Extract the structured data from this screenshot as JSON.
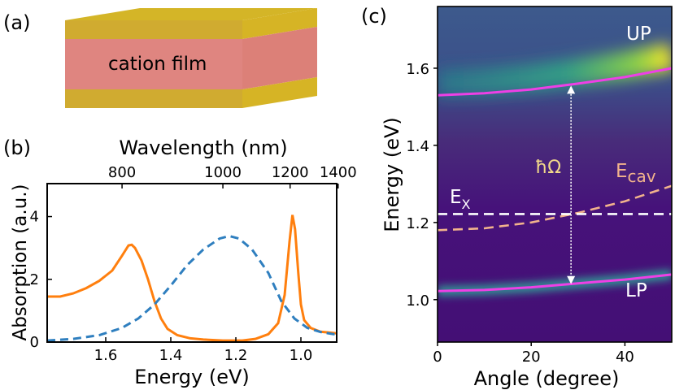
{
  "panels": {
    "a": {
      "label": "(a)",
      "film_label": "cation film",
      "colors": {
        "mirror": "#d4b527",
        "mirror_side": "#cfa832",
        "film": "#df8580",
        "film_side": "#d87d73"
      }
    },
    "b": {
      "label": "(b)"
    },
    "c": {
      "label": "(c)"
    }
  },
  "chart_data": [
    {
      "type": "line",
      "panel": "b",
      "xlabel": "Energy (eV)",
      "ylabel": "Absorption (a.u.)",
      "x_reversed": true,
      "xlim": [
        1.78,
        0.89
      ],
      "ylim": [
        0,
        5.05
      ],
      "xticks": [
        1.6,
        1.4,
        1.2,
        1.0
      ],
      "xtick_labels": [
        "1.6",
        "1.4",
        "1.2",
        "1.0"
      ],
      "yticks": [
        0,
        2,
        4
      ],
      "ytick_labels": [
        "0",
        "2",
        "4"
      ],
      "top_axis": {
        "label": "Wavelength (nm)",
        "ticks_nm": [
          800,
          1000,
          1200,
          1400
        ],
        "tick_labels": [
          "800",
          "1000",
          "1200",
          "1400"
        ],
        "conversion": "E = 1239.84 / wavelength"
      },
      "series": [
        {
          "style": "solid",
          "color": "#ff7f0e",
          "points": [
            [
              1.78,
              1.45
            ],
            [
              1.74,
              1.45
            ],
            [
              1.7,
              1.55
            ],
            [
              1.66,
              1.72
            ],
            [
              1.62,
              1.95
            ],
            [
              1.58,
              2.28
            ],
            [
              1.55,
              2.75
            ],
            [
              1.53,
              3.08
            ],
            [
              1.52,
              3.1
            ],
            [
              1.51,
              3.0
            ],
            [
              1.49,
              2.6
            ],
            [
              1.47,
              2.0
            ],
            [
              1.45,
              1.3
            ],
            [
              1.43,
              0.75
            ],
            [
              1.41,
              0.42
            ],
            [
              1.38,
              0.22
            ],
            [
              1.34,
              0.12
            ],
            [
              1.3,
              0.08
            ],
            [
              1.24,
              0.05
            ],
            [
              1.18,
              0.05
            ],
            [
              1.14,
              0.1
            ],
            [
              1.1,
              0.25
            ],
            [
              1.07,
              0.6
            ],
            [
              1.05,
              1.5
            ],
            [
              1.035,
              3.2
            ],
            [
              1.026,
              4.05
            ],
            [
              1.018,
              3.6
            ],
            [
              1.008,
              2.2
            ],
            [
              1.0,
              1.2
            ],
            [
              0.99,
              0.7
            ],
            [
              0.97,
              0.45
            ],
            [
              0.94,
              0.33
            ],
            [
              0.91,
              0.3
            ],
            [
              0.89,
              0.28
            ]
          ]
        },
        {
          "style": "dashed",
          "color": "#2f7fbf",
          "points": [
            [
              1.78,
              0.05
            ],
            [
              1.7,
              0.1
            ],
            [
              1.62,
              0.22
            ],
            [
              1.55,
              0.45
            ],
            [
              1.5,
              0.75
            ],
            [
              1.45,
              1.2
            ],
            [
              1.4,
              1.8
            ],
            [
              1.35,
              2.45
            ],
            [
              1.3,
              2.95
            ],
            [
              1.25,
              3.3
            ],
            [
              1.22,
              3.38
            ],
            [
              1.19,
              3.3
            ],
            [
              1.15,
              2.95
            ],
            [
              1.1,
              2.2
            ],
            [
              1.06,
              1.3
            ],
            [
              1.02,
              0.75
            ],
            [
              0.98,
              0.45
            ],
            [
              0.94,
              0.32
            ],
            [
              0.9,
              0.25
            ],
            [
              0.89,
              0.25
            ]
          ]
        }
      ]
    },
    {
      "type": "heatmap",
      "panel": "c",
      "xlabel": "Angle (degree)",
      "ylabel": "Energy (eV)",
      "xlim": [
        0,
        50
      ],
      "ylim": [
        0.89,
        1.76
      ],
      "xticks": [
        0,
        20,
        40
      ],
      "xtick_labels": [
        "0",
        "20",
        "40"
      ],
      "yticks": [
        1.0,
        1.2,
        1.4,
        1.6
      ],
      "ytick_labels": [
        "1.0",
        "1.2",
        "1.4",
        "1.6"
      ],
      "colormap": "viridis",
      "lines": [
        {
          "name": "UP",
          "color": "#ee3fe6",
          "style": "solid",
          "points": [
            [
              0,
              1.53
            ],
            [
              10,
              1.535
            ],
            [
              20,
              1.545
            ],
            [
              30,
              1.56
            ],
            [
              40,
              1.577
            ],
            [
              50,
              1.6
            ]
          ]
        },
        {
          "name": "LP",
          "color": "#ee3fe6",
          "style": "solid",
          "points": [
            [
              0,
              1.022
            ],
            [
              10,
              1.025
            ],
            [
              20,
              1.032
            ],
            [
              30,
              1.042
            ],
            [
              40,
              1.052
            ],
            [
              50,
              1.065
            ]
          ]
        },
        {
          "name": "E",
          "subscript": "cav",
          "color": "#f2b38c",
          "style": "dashed",
          "points": [
            [
              0,
              1.18
            ],
            [
              10,
              1.185
            ],
            [
              20,
              1.2
            ],
            [
              30,
              1.225
            ],
            [
              40,
              1.255
            ],
            [
              50,
              1.295
            ]
          ]
        },
        {
          "name": "E",
          "subscript": "X",
          "color": "#ffffff",
          "style": "dashed",
          "points": [
            [
              0,
              1.222
            ],
            [
              50,
              1.222
            ]
          ]
        }
      ],
      "arrow": {
        "label": "ħΩ",
        "x": 28.5,
        "y_from": 1.04,
        "y_to": 1.555,
        "color": "#ffffff"
      },
      "labels": {
        "up": "UP",
        "lp": "LP",
        "ex_main": "E",
        "ex_sub": "X",
        "ecav_main": "E",
        "ecav_sub": "cav"
      },
      "colors": {
        "background": "#45107a",
        "band_mid": "#26828e",
        "band_hi": "#6ece58",
        "peak": "#fde725"
      }
    }
  ]
}
